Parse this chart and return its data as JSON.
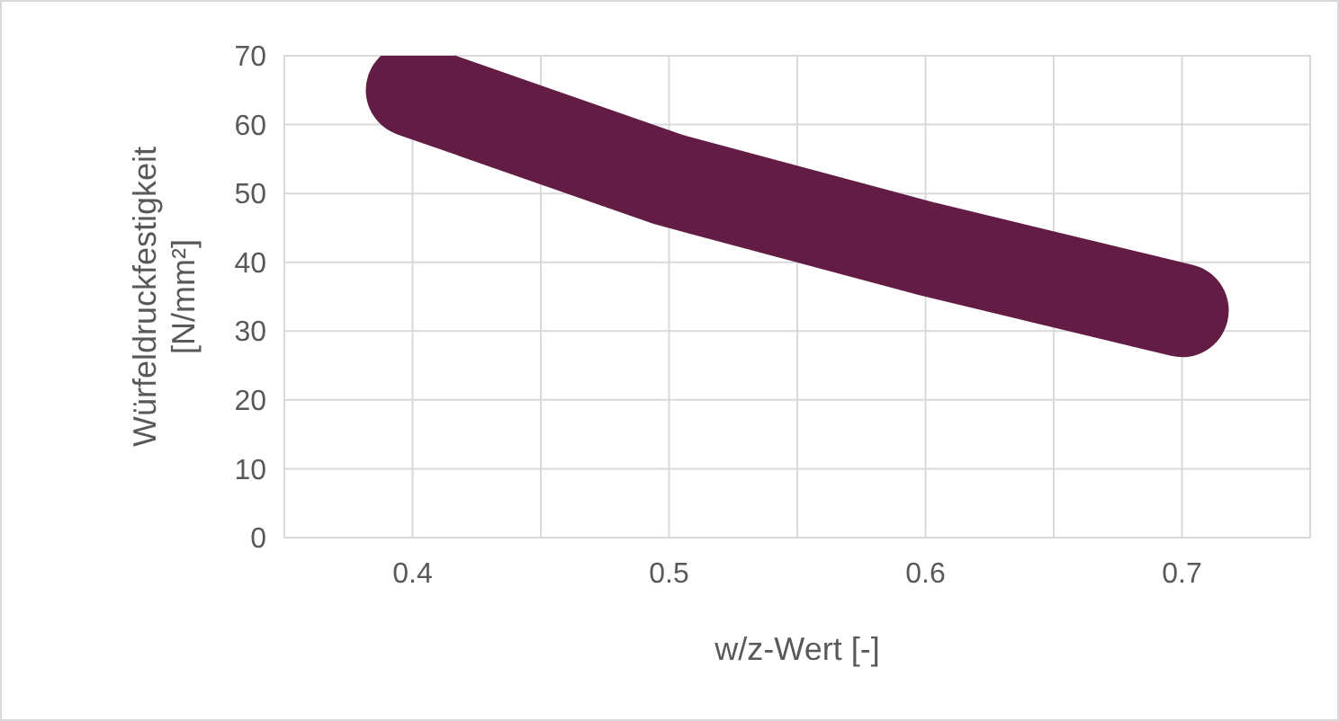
{
  "chart_data": {
    "type": "line",
    "xlabel": "w/z-Wert [-]",
    "ylabel": "Würfeldruckfestigkeit [N/mm²]",
    "x": [
      0.4,
      0.5,
      0.6,
      0.7
    ],
    "series": [
      {
        "color": "#631c43",
        "values": [
          65,
          52,
          42,
          33
        ]
      }
    ],
    "xlim": [
      0.35,
      0.75
    ],
    "xticks": [
      {
        "value": 0.35,
        "label": null
      },
      0.4,
      {
        "value": 0.45,
        "label": null
      },
      0.5,
      {
        "value": 0.55,
        "label": null
      },
      0.6,
      {
        "value": 0.65,
        "label": null
      },
      0.7,
      {
        "value": 0.75,
        "label": null
      }
    ],
    "ylim": [
      0,
      70
    ],
    "yticks": [
      0,
      10,
      20,
      30,
      40,
      50,
      60,
      70
    ],
    "grid": true,
    "line_style": "solid"
  }
}
